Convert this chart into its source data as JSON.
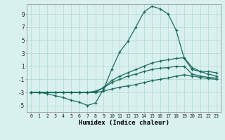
{
  "xlabel": "Humidex (Indice chaleur)",
  "bg_color": "#d8f0ee",
  "grid_color": "#b8dcd8",
  "line_color": "#1a6b60",
  "xlim": [
    -0.5,
    23.5
  ],
  "ylim": [
    -6.0,
    10.5
  ],
  "xticks": [
    0,
    1,
    2,
    3,
    4,
    5,
    6,
    7,
    8,
    9,
    10,
    11,
    12,
    13,
    14,
    15,
    16,
    17,
    18,
    19,
    20,
    21,
    22,
    23
  ],
  "yticks": [
    -5,
    -3,
    -1,
    1,
    3,
    5,
    7,
    9
  ],
  "line1_x": [
    0,
    1,
    2,
    3,
    4,
    5,
    6,
    7,
    8,
    9,
    10,
    11,
    12,
    13,
    14,
    15,
    16,
    17,
    18,
    19,
    20,
    21,
    22,
    23
  ],
  "line1_y": [
    -3.0,
    -3.0,
    -3.2,
    -3.5,
    -3.8,
    -4.2,
    -4.5,
    -5.0,
    -4.6,
    -2.5,
    0.5,
    3.2,
    4.8,
    7.0,
    9.3,
    10.2,
    9.8,
    9.0,
    6.5,
    2.2,
    0.5,
    0.2,
    0.2,
    0.0
  ],
  "line2_x": [
    0,
    1,
    2,
    3,
    4,
    5,
    6,
    7,
    8,
    9,
    10,
    11,
    12,
    13,
    14,
    15,
    16,
    17,
    18,
    19,
    20,
    21,
    22,
    23
  ],
  "line2_y": [
    -3.0,
    -3.0,
    -3.0,
    -3.0,
    -3.0,
    -3.0,
    -3.0,
    -3.0,
    -3.0,
    -2.2,
    -1.2,
    -0.5,
    0.0,
    0.5,
    1.0,
    1.5,
    1.8,
    2.0,
    2.2,
    2.3,
    0.8,
    0.2,
    -0.2,
    -0.5
  ],
  "line3_x": [
    0,
    1,
    2,
    3,
    4,
    5,
    6,
    7,
    8,
    9,
    10,
    11,
    12,
    13,
    14,
    15,
    16,
    17,
    18,
    19,
    20,
    21,
    22,
    23
  ],
  "line3_y": [
    -3.0,
    -3.0,
    -3.0,
    -3.0,
    -3.0,
    -3.0,
    -3.0,
    -3.0,
    -3.0,
    -2.8,
    -2.5,
    -2.2,
    -2.0,
    -1.8,
    -1.5,
    -1.2,
    -1.0,
    -0.8,
    -0.5,
    -0.3,
    -0.5,
    -0.7,
    -0.9,
    -1.0
  ],
  "line4_x": [
    0,
    1,
    2,
    3,
    4,
    5,
    6,
    7,
    8,
    9,
    10,
    11,
    12,
    13,
    14,
    15,
    16,
    17,
    18,
    19,
    20,
    21,
    22,
    23
  ],
  "line4_y": [
    -3.0,
    -3.0,
    -3.0,
    -3.0,
    -3.0,
    -3.0,
    -3.0,
    -3.0,
    -2.8,
    -2.3,
    -1.5,
    -1.0,
    -0.5,
    -0.2,
    0.2,
    0.5,
    0.7,
    0.8,
    1.0,
    1.0,
    -0.2,
    -0.5,
    -0.7,
    -0.8
  ]
}
